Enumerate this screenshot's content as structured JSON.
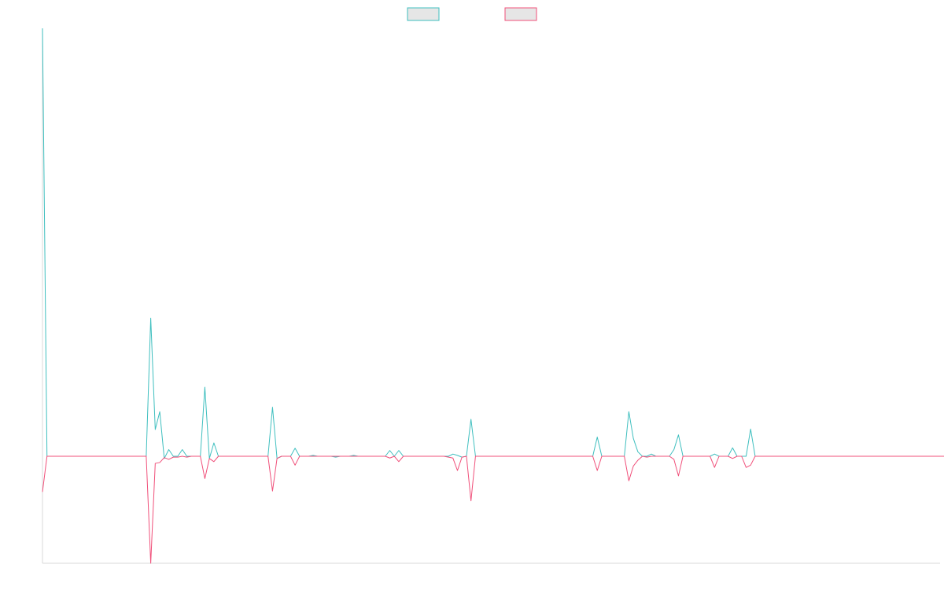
{
  "chart_data": {
    "type": "line",
    "title": "",
    "xlabel": "",
    "ylabel": "",
    "grid": false,
    "legend": "top-center",
    "legend_swatch_fill": "#e6e6e6",
    "xlim": [
      0,
      199
    ],
    "ylim": [
      -24,
      96
    ],
    "series": [
      {
        "color": "#3fbfbf",
        "values": [
          96,
          0,
          0,
          0,
          0,
          0,
          0,
          0,
          0,
          0,
          0,
          0,
          0,
          0,
          0,
          0,
          0,
          0,
          0,
          0,
          0,
          0,
          0,
          0,
          31,
          6,
          10,
          -0.5,
          1.5,
          0,
          0,
          1.5,
          0,
          0,
          0,
          0,
          15.5,
          -0.5,
          3,
          0,
          0,
          0,
          0,
          0,
          0,
          0,
          0,
          0,
          0,
          0,
          0,
          11,
          -0.5,
          0,
          0,
          0,
          1.8,
          0,
          0,
          0,
          0.2,
          0,
          0,
          0,
          0,
          -0.2,
          0,
          0,
          0,
          0.2,
          0,
          0,
          0,
          0,
          0,
          0,
          0,
          1.3,
          0,
          1.3,
          0,
          0,
          0,
          0,
          0,
          0,
          0,
          0,
          0,
          0,
          0,
          0.5,
          0.2,
          -0.2,
          0,
          8.3,
          0,
          0,
          0,
          0,
          0,
          0,
          0,
          0,
          0,
          0,
          0,
          0,
          0,
          0,
          0,
          0,
          0,
          0,
          0,
          0,
          0,
          0,
          0,
          0,
          0,
          0,
          0,
          4.3,
          0,
          0,
          0,
          0,
          0,
          0,
          10,
          4,
          1,
          0,
          0,
          0.5,
          0,
          0,
          0,
          0,
          1.5,
          4.8,
          0,
          0,
          0,
          0,
          0,
          0,
          0,
          0.5,
          0,
          0,
          0,
          1.9,
          0,
          0,
          0,
          6.1,
          0,
          0,
          0,
          0,
          0,
          0,
          0,
          0,
          0,
          0,
          0,
          0,
          0,
          0,
          0,
          0,
          0,
          0,
          0,
          0,
          0,
          0,
          0,
          0,
          0,
          0,
          0,
          0,
          0,
          0,
          0,
          0,
          0,
          0,
          0,
          0,
          0,
          0,
          0,
          0,
          0,
          0,
          0,
          0,
          0,
          0,
          0
        ]
      },
      {
        "color": "#f0507a",
        "values": [
          -8,
          0,
          0,
          0,
          0,
          0,
          0,
          0,
          0,
          0,
          0,
          0,
          0,
          0,
          0,
          0,
          0,
          0,
          0,
          0,
          0,
          0,
          0,
          0,
          -24,
          -1.6,
          -1.4,
          -0.3,
          -0.7,
          -0.2,
          -0.2,
          0,
          -0.2,
          0,
          0,
          0,
          -5,
          -0.5,
          -1.2,
          0,
          0,
          0,
          0,
          0,
          0,
          0,
          0,
          0,
          0,
          0,
          0,
          -7.8,
          -0.5,
          0,
          0,
          0,
          -2,
          0,
          0,
          0,
          0,
          0,
          0,
          0,
          0,
          0,
          0,
          0,
          0,
          0,
          0,
          0,
          0,
          0,
          0,
          0,
          0,
          -0.4,
          0,
          -1.2,
          0,
          0,
          0,
          0,
          0,
          0,
          0,
          0,
          0,
          0,
          -0.2,
          -0.4,
          -3.2,
          -0.2,
          0,
          -10,
          0,
          0,
          0,
          0,
          0,
          0,
          0,
          0,
          0,
          0,
          0,
          0,
          0,
          0,
          0,
          0,
          0,
          0,
          0,
          0,
          0,
          0,
          0,
          0,
          0,
          0,
          0,
          -3.2,
          0,
          0,
          0,
          0,
          0,
          0,
          -5.5,
          -2.2,
          -0.9,
          0,
          -0.2,
          0,
          0,
          0,
          0,
          0,
          -0.7,
          -4.4,
          0,
          0,
          0,
          0,
          0,
          0,
          0,
          -2.5,
          0,
          0,
          0,
          -0.5,
          0,
          0,
          -2.5,
          -2,
          0,
          0,
          0,
          0,
          0,
          0,
          0,
          0,
          0,
          0,
          0,
          0,
          0,
          0,
          0,
          0,
          0,
          0,
          0,
          0,
          0,
          0,
          0,
          0,
          0,
          0,
          0,
          0,
          0,
          0,
          0,
          0,
          0,
          0,
          0,
          0,
          0,
          0,
          0,
          0,
          0,
          0,
          0,
          0,
          0,
          0,
          0,
          0,
          0
        ]
      }
    ]
  }
}
